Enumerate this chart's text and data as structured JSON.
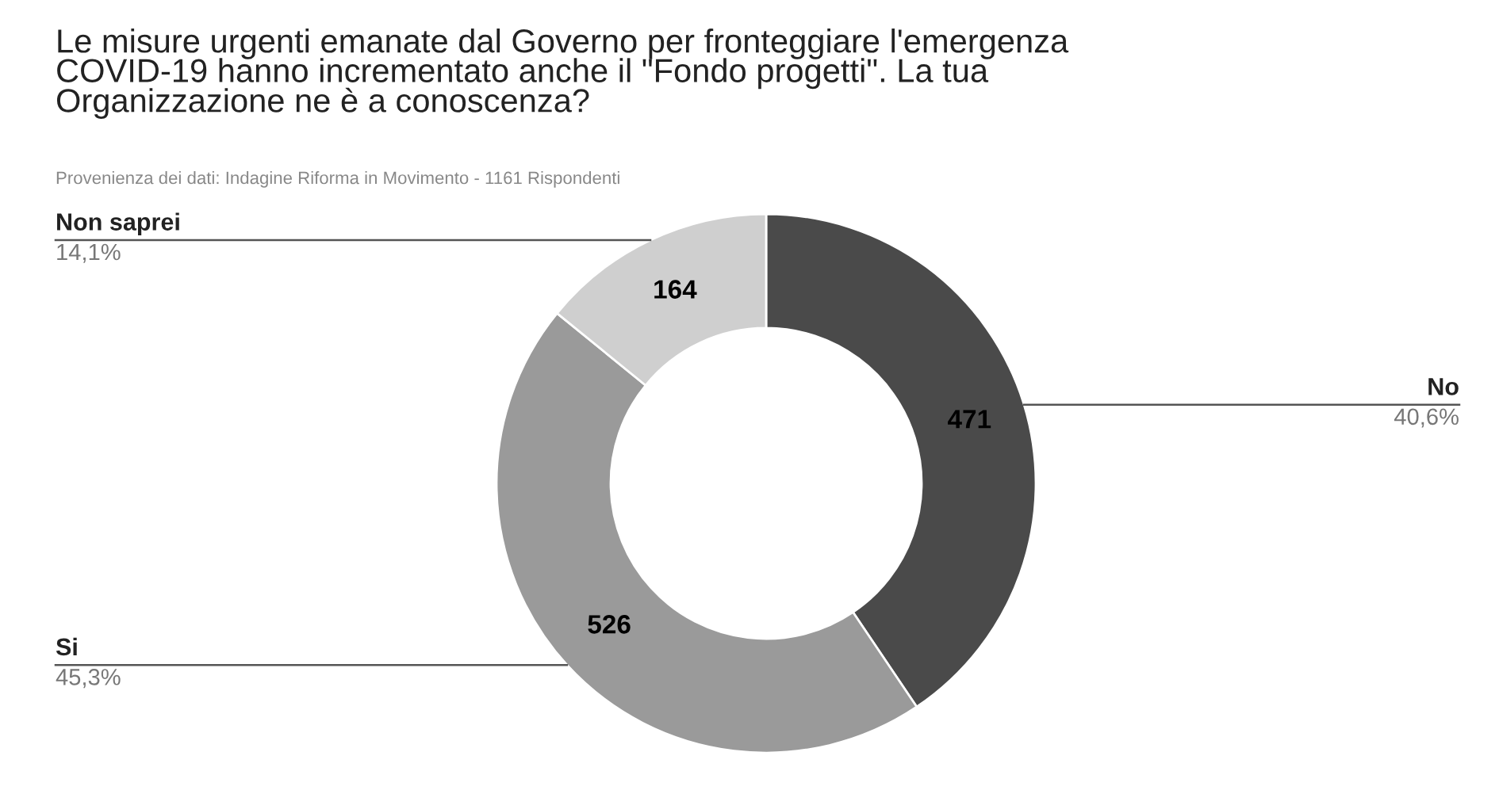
{
  "chart_data": {
    "type": "donut",
    "title": "Le misure urgenti emanate dal Governo per fronteggiare l'emergenza\nCOVID-19 hanno incrementato anche il \"Fondo progetti\". La tua\nOrganizzazione ne è a conoscenza?",
    "subtitle": "Provenienza dei dati: Indagine Riforma in Movimento - 1161 Rispondenti",
    "categories": [
      "No",
      "Si",
      "Non saprei"
    ],
    "values": [
      471,
      526,
      164
    ],
    "colors": [
      "#4a4a4a",
      "#9a9a9a",
      "#cfcfcf"
    ],
    "data_labels": true,
    "annotations": [
      "40,6%",
      "45,3%",
      "14,1%"
    ],
    "legend": false
  }
}
